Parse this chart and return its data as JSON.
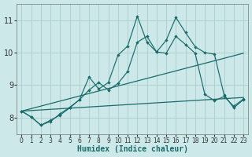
{
  "xlabel": "Humidex (Indice chaleur)",
  "bg_color": "#cce8e8",
  "grid_color": "#aacccc",
  "line_color": "#1a6b6b",
  "xlim": [
    -0.5,
    23.5
  ],
  "ylim": [
    7.5,
    11.5
  ],
  "xticks": [
    0,
    1,
    2,
    3,
    4,
    5,
    6,
    7,
    8,
    9,
    10,
    11,
    12,
    13,
    14,
    15,
    16,
    17,
    18,
    19,
    20,
    21,
    22,
    23
  ],
  "yticks": [
    8,
    9,
    10,
    11
  ],
  "line_high_y": [
    8.2,
    8.02,
    7.77,
    7.88,
    8.12,
    8.32,
    8.55,
    9.25,
    8.88,
    9.08,
    9.92,
    10.2,
    11.12,
    10.32,
    10.02,
    10.38,
    11.08,
    10.62,
    10.18,
    10.0,
    9.95,
    8.7,
    8.3,
    8.55
  ],
  "line_mid_y": [
    8.2,
    8.02,
    7.77,
    7.92,
    8.08,
    8.3,
    8.55,
    8.85,
    9.08,
    8.85,
    9.05,
    9.42,
    10.32,
    10.5,
    10.02,
    9.98,
    10.5,
    10.25,
    9.98,
    8.72,
    8.52,
    8.65,
    8.35,
    8.57
  ],
  "diag1_y_end": 9.98,
  "diag2_y_end": 8.62,
  "diag_y_start": 8.2
}
